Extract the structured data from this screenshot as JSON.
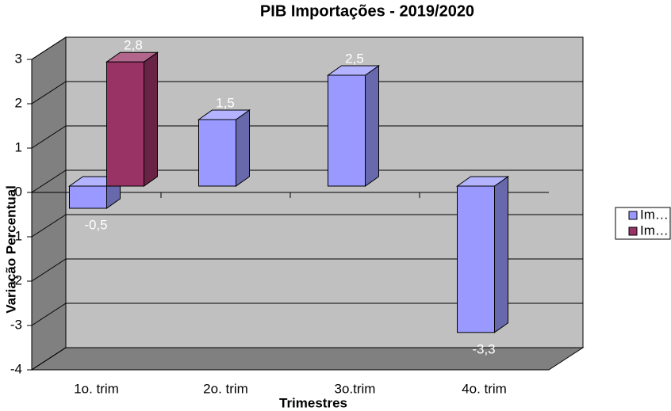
{
  "chart_data": {
    "type": "bar3d",
    "title": "PIB Importações - 2019/2020",
    "x_label": "Trimestres",
    "y_label": "Variação Percentual",
    "categories": [
      "1o. trim",
      "2o. trim",
      "3o.trim",
      "4o. trim"
    ],
    "series": [
      {
        "name": "Im…",
        "color": "#9999ff",
        "values": [
          -0.5,
          1.5,
          2.5,
          -3.3
        ],
        "value_labels": [
          "-0,5",
          "1,5",
          "2,5",
          "-3,3"
        ]
      },
      {
        "name": "Im…",
        "color": "#993366",
        "values": [
          2.8,
          null,
          null,
          null
        ],
        "value_labels": [
          "2,8",
          null,
          null,
          null
        ]
      }
    ],
    "ylim": [
      -4,
      3
    ],
    "yticks": [
      -4,
      -3,
      -2,
      -1,
      0,
      1,
      2,
      3
    ],
    "grid": true,
    "legend": "right"
  }
}
